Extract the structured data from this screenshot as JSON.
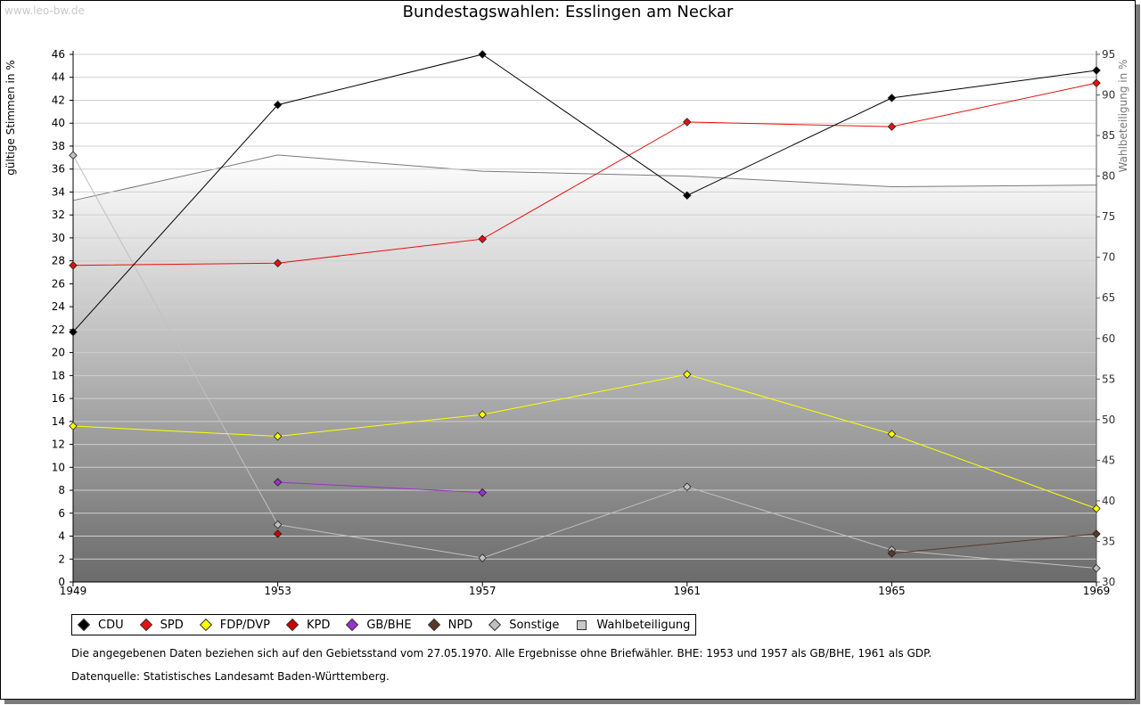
{
  "watermark": "www.leo-bw.de",
  "title": "Bundestagswahlen: Esslingen am Neckar",
  "chart_data": {
    "type": "line",
    "title": "Bundestagswahlen: Esslingen am Neckar",
    "x": [
      1949,
      1953,
      1957,
      1961,
      1965,
      1969
    ],
    "ylabel": "gültige Stimmen in %",
    "ylabel_right": "Wahlbeteiligung in %",
    "ylim": [
      0,
      46
    ],
    "yticks": [
      0,
      2,
      4,
      6,
      8,
      10,
      12,
      14,
      16,
      18,
      20,
      22,
      24,
      26,
      28,
      30,
      32,
      34,
      36,
      38,
      40,
      42,
      44,
      46
    ],
    "ylim_right": [
      30,
      95
    ],
    "yticks_right": [
      30,
      35,
      40,
      45,
      50,
      55,
      60,
      65,
      70,
      75,
      80,
      85,
      90,
      95
    ],
    "grid": true,
    "legend_position": "bottom",
    "series": [
      {
        "name": "CDU",
        "color": "#000000",
        "values": [
          21.8,
          41.6,
          46.0,
          33.7,
          42.2,
          44.6
        ]
      },
      {
        "name": "SPD",
        "color": "#e81010",
        "values": [
          27.6,
          27.8,
          29.9,
          40.1,
          39.7,
          43.5
        ]
      },
      {
        "name": "FDP/DVP",
        "color": "#ffff00",
        "values": [
          13.6,
          12.7,
          14.6,
          18.1,
          12.9,
          6.4
        ]
      },
      {
        "name": "KPD",
        "color": "#cc0000",
        "values": [
          null,
          4.2,
          null,
          null,
          null,
          null
        ]
      },
      {
        "name": "GB/BHE",
        "color": "#9933cc",
        "values": [
          null,
          8.7,
          7.8,
          null,
          null,
          null
        ]
      },
      {
        "name": "NPD",
        "color": "#5a3a28",
        "values": [
          null,
          null,
          null,
          null,
          2.5,
          4.2
        ]
      },
      {
        "name": "Sonstige",
        "color": "#c0c0c0",
        "values": [
          37.2,
          5.0,
          2.1,
          8.3,
          2.8,
          1.2
        ]
      },
      {
        "name": "Wahlbeteiligung",
        "color": "#c8c8c8",
        "axis": "right",
        "type": "area",
        "values": [
          77.0,
          82.6,
          80.6,
          80.0,
          78.7,
          78.9
        ]
      }
    ]
  },
  "legend": [
    {
      "label": "CDU",
      "color": "#000000"
    },
    {
      "label": "SPD",
      "color": "#e81010"
    },
    {
      "label": "FDP/DVP",
      "color": "#ffff00"
    },
    {
      "label": "KPD",
      "color": "#cc0000"
    },
    {
      "label": "GB/BHE",
      "color": "#9933cc"
    },
    {
      "label": "NPD",
      "color": "#5a3a28"
    },
    {
      "label": "Sonstige",
      "color": "#c0c0c0"
    },
    {
      "label": "Wahlbeteiligung",
      "color": "#c8c8c8",
      "square": true
    }
  ],
  "notes": {
    "line1": "Die angegebenen Daten beziehen sich auf den Gebietsstand vom 27.05.1970. Alle Ergebnisse ohne Briefwähler. BHE: 1953 und 1957 als GB/BHE, 1961 als GDP.",
    "line2": "Datenquelle: Statistisches Landesamt Baden-Württemberg."
  }
}
